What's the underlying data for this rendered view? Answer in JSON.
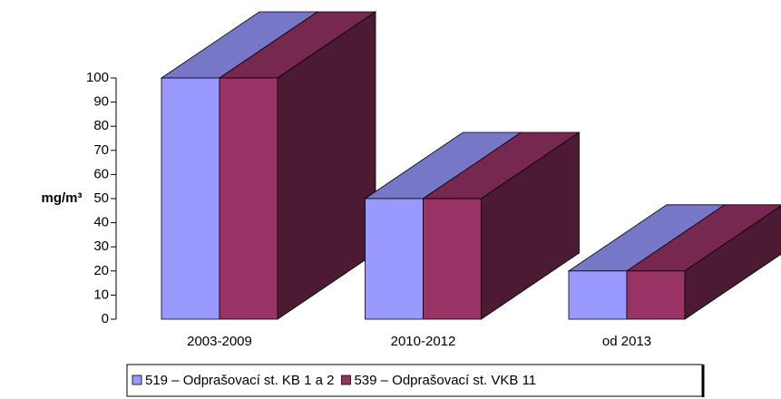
{
  "chart_data": {
    "type": "bar3d",
    "y_label": "mg/m³",
    "categories": [
      "2003-2009",
      "2010-2012",
      "od 2013"
    ],
    "series": [
      {
        "name": "519 – Odprašovací st. KB 1 a 2",
        "color": "#9999ff",
        "values": [
          100,
          50,
          20
        ]
      },
      {
        "name": "539 – Odprašovací st. VKB 11",
        "color": "#993366",
        "values": [
          100,
          50,
          20
        ]
      }
    ],
    "ylim": [
      0,
      100
    ],
    "yticks": [
      0,
      10,
      20,
      30,
      40,
      50,
      60,
      70,
      80,
      90,
      100
    ]
  }
}
